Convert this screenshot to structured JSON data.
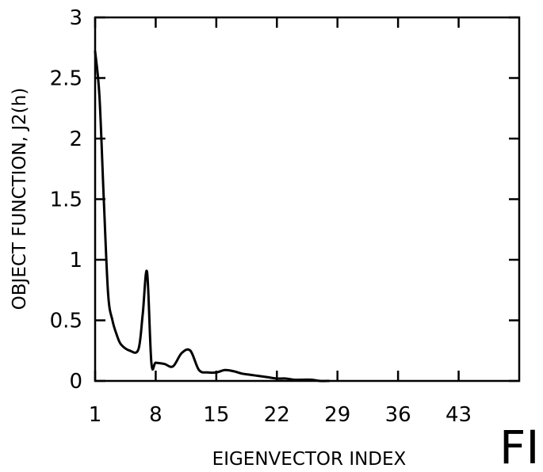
{
  "chart_data": {
    "type": "line",
    "title": "",
    "xlabel": "EIGENVECTOR INDEX",
    "ylabel": "OBJECT FUNCTION, J2(h)",
    "xlim": [
      1,
      50
    ],
    "ylim": [
      0,
      3
    ],
    "x_ticks": [
      1,
      8,
      15,
      22,
      29,
      36,
      43
    ],
    "y_ticks": [
      0,
      0.5,
      1,
      1.5,
      2,
      2.5,
      3
    ],
    "y_tick_labels": [
      "0",
      "0.5",
      "1",
      "1.5",
      "2",
      "2.5",
      "3"
    ],
    "grid": false,
    "series": [
      {
        "x": [
          1,
          1.5,
          2,
          2.5,
          3,
          3.5,
          4,
          5,
          6,
          6.5,
          7,
          7.5,
          8,
          9,
          10,
          11,
          12,
          13,
          14,
          15,
          16,
          17,
          18,
          19,
          20,
          21,
          22,
          23,
          24,
          25,
          26,
          27,
          28
        ],
        "values": [
          2.72,
          2.35,
          1.5,
          0.72,
          0.5,
          0.38,
          0.3,
          0.25,
          0.26,
          0.55,
          0.9,
          0.15,
          0.15,
          0.14,
          0.12,
          0.23,
          0.25,
          0.09,
          0.07,
          0.07,
          0.09,
          0.08,
          0.06,
          0.05,
          0.04,
          0.03,
          0.02,
          0.02,
          0.01,
          0.01,
          0.01,
          0.0,
          0.0
        ]
      }
    ]
  },
  "figure_label": "FI"
}
